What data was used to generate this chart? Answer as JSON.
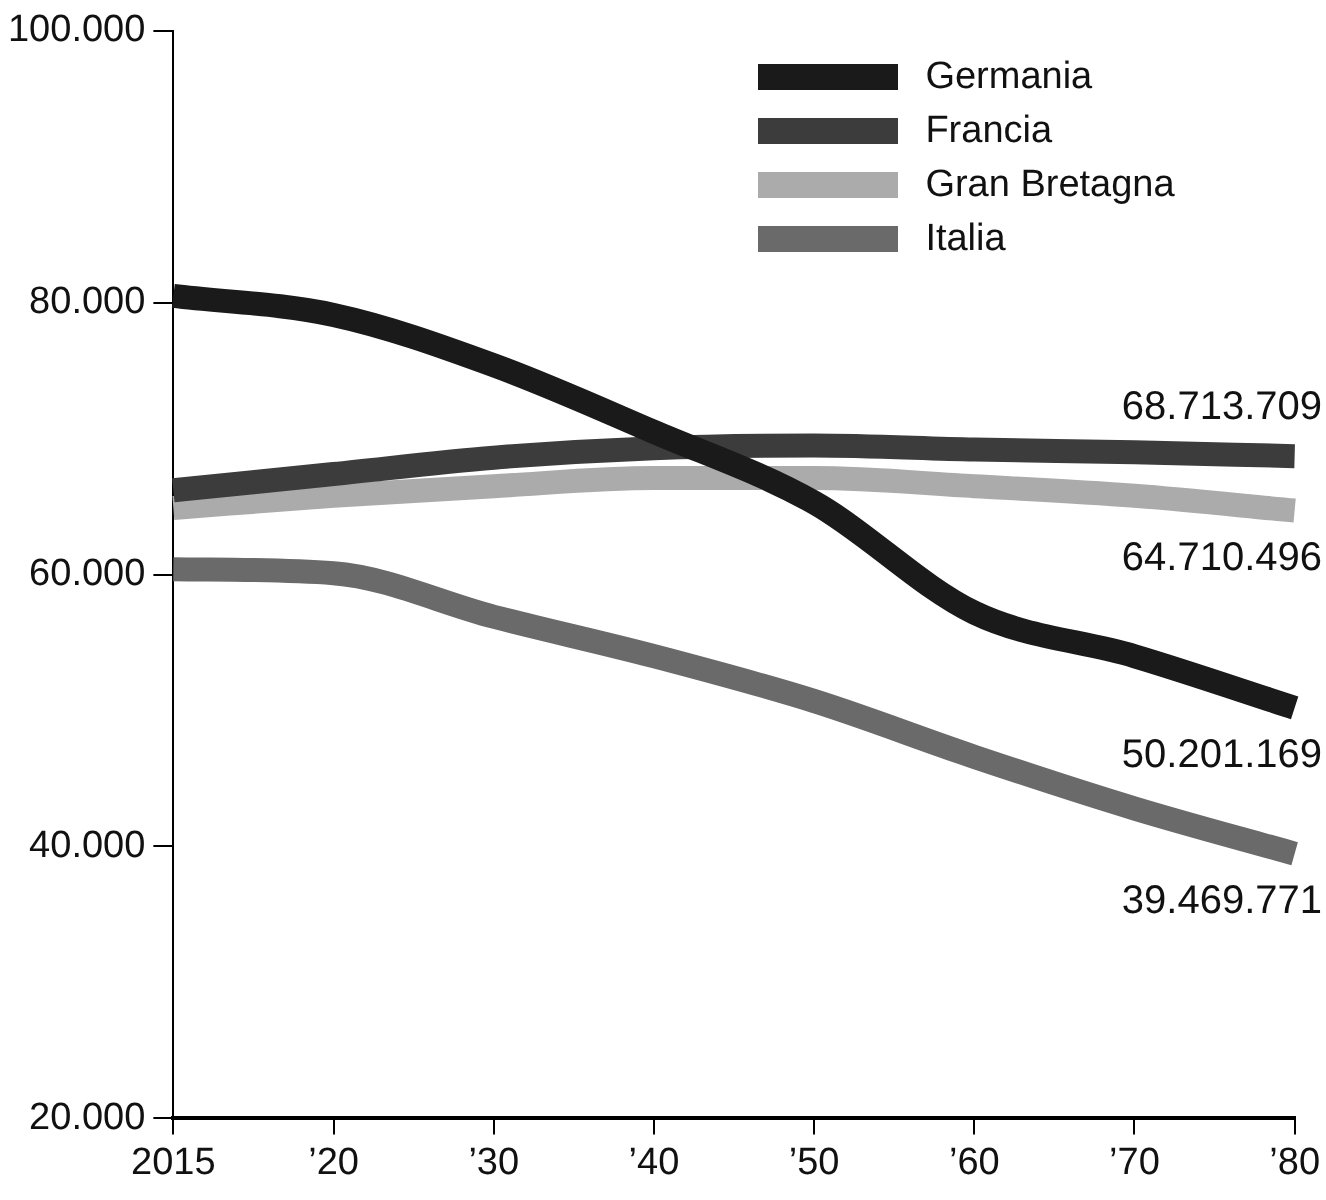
{
  "chart_data": {
    "type": "line",
    "categories": [
      "2015",
      "’20",
      "’30",
      "’40",
      "’50",
      "’60",
      "’70",
      "’80"
    ],
    "series": [
      {
        "name": "Germania",
        "color": "#1a1a1a",
        "values": [
          80500,
          79100,
          75400,
          70500,
          65300,
          57200,
          54000,
          50201
        ]
      },
      {
        "name": "Francia",
        "color": "#3c3c3c",
        "values": [
          66200,
          67400,
          68600,
          69300,
          69500,
          69200,
          69000,
          68714
        ]
      },
      {
        "name": "Gran Bretagna",
        "color": "#ababab",
        "values": [
          64900,
          65800,
          66500,
          67100,
          67100,
          66500,
          65800,
          64710
        ]
      },
      {
        "name": "Italia",
        "color": "#6a6a6a",
        "values": [
          60400,
          60100,
          56900,
          54000,
          50700,
          46600,
          42800,
          39470
        ]
      }
    ],
    "annotations": [
      {
        "text": "68.713.709",
        "x": "’80",
        "y": 68714
      },
      {
        "text": "64.710.496",
        "x": "’80",
        "y": 64710
      },
      {
        "text": "50.201.169",
        "x": "’80",
        "y": 50201
      },
      {
        "text": "39.469.771",
        "x": "’80",
        "y": 39470
      }
    ],
    "ylim": [
      20000,
      100000
    ],
    "yticks": [
      {
        "value": 20000,
        "label": "20.000"
      },
      {
        "value": 40000,
        "label": "40.000"
      },
      {
        "value": 60000,
        "label": "60.000"
      },
      {
        "value": 80000,
        "label": "80.000"
      },
      {
        "value": 100000,
        "label": "100.000"
      }
    ],
    "grid": false,
    "legend": "top right",
    "marker": "none",
    "line_style": "solid"
  }
}
